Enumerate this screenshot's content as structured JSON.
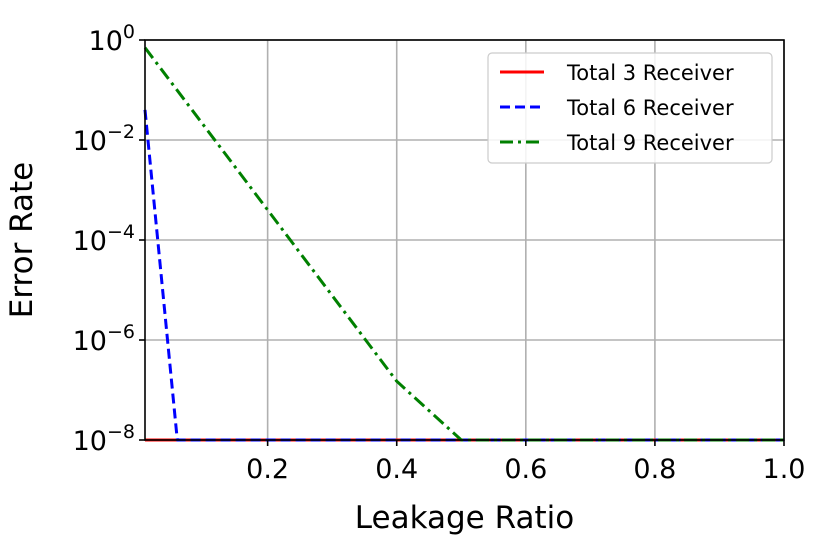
{
  "chart_data": {
    "type": "line",
    "title": "",
    "xlabel": "Leakage Ratio",
    "ylabel": "Error Rate",
    "xlim": [
      0.01,
      1.0
    ],
    "ylim_log10": [
      -8,
      0
    ],
    "y_scale": "log",
    "grid": true,
    "legend_position": "top-right",
    "x_ticks": [
      {
        "value": 0.2,
        "label": "0.2"
      },
      {
        "value": 0.4,
        "label": "0.4"
      },
      {
        "value": 0.6,
        "label": "0.6"
      },
      {
        "value": 0.8,
        "label": "0.8"
      },
      {
        "value": 1.0,
        "label": "1.0"
      }
    ],
    "y_ticks": [
      {
        "exp": 0,
        "base": "10",
        "sup": "0"
      },
      {
        "exp": -2,
        "base": "10",
        "sup": "−2"
      },
      {
        "exp": -4,
        "base": "10",
        "sup": "−4"
      },
      {
        "exp": -6,
        "base": "10",
        "sup": "−6"
      },
      {
        "exp": -8,
        "base": "10",
        "sup": "−8"
      }
    ],
    "series": [
      {
        "name": "Total 3 Receiver",
        "color": "#ff0000",
        "style": "solid",
        "x": [
          0.01,
          1.0
        ],
        "y": [
          1e-08,
          1e-08
        ]
      },
      {
        "name": "Total 6 Receiver",
        "color": "#0000ff",
        "style": "dashed",
        "x": [
          0.01,
          0.06,
          1.0
        ],
        "y": [
          0.04,
          1e-08,
          1e-08
        ]
      },
      {
        "name": "Total 9 Receiver",
        "color": "#008000",
        "style": "dashdot",
        "x": [
          0.01,
          0.2,
          0.4,
          0.5,
          1.0
        ],
        "y": [
          0.7,
          0.0004,
          1.5e-07,
          1e-08,
          1e-08
        ]
      }
    ]
  }
}
